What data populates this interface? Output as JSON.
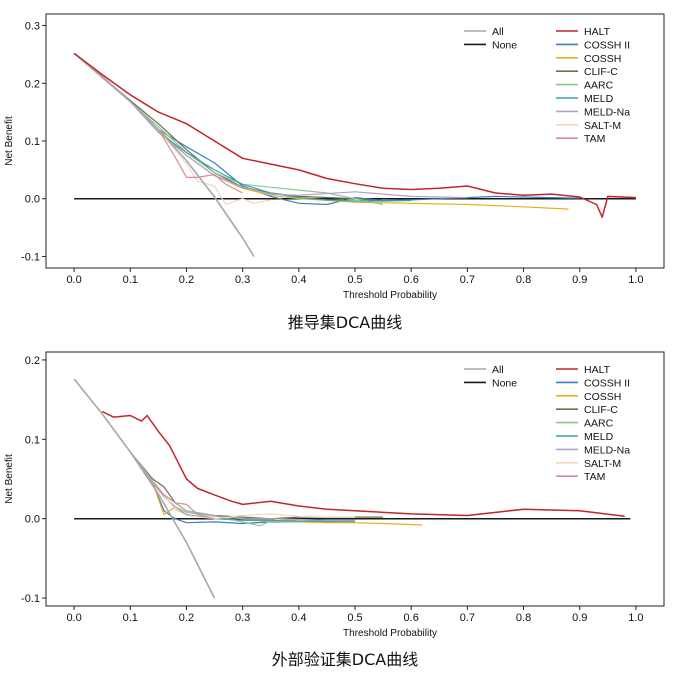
{
  "chart_data": [
    {
      "type": "line",
      "caption": "推导集DCA曲线",
      "xlabel": "Threshold Probability",
      "ylabel": "Net Benefit",
      "xlim": [
        -0.05,
        1.05
      ],
      "ylim": [
        -0.12,
        0.32
      ],
      "xticks": [
        0.0,
        0.1,
        0.2,
        0.3,
        0.4,
        0.5,
        0.6,
        0.7,
        0.8,
        0.9,
        1.0
      ],
      "xtick_labels": [
        "0.0",
        "0.1",
        "0.2",
        "0.3",
        "0.4",
        "0.5",
        "0.6",
        "0.7",
        "0.8",
        "0.9",
        "1.0"
      ],
      "yticks": [
        -0.1,
        0.0,
        0.1,
        0.2,
        0.3
      ],
      "ytick_labels": [
        "-0.1",
        "0.0",
        "0.1",
        "0.2",
        "0.3"
      ],
      "legend_col1": [
        "All",
        "None"
      ],
      "legend_col2": [
        "HALT",
        "COSSH II",
        "COSSH",
        "CLIF-C",
        "AARC",
        "MELD",
        "MELD-Na",
        "SALT-M",
        "TAM"
      ],
      "series": [
        {
          "name": "All",
          "color": "#a8a8a8",
          "x": [
            0.0,
            0.05,
            0.1,
            0.15,
            0.2,
            0.25,
            0.3,
            0.32
          ],
          "y": [
            0.252,
            0.212,
            0.168,
            0.12,
            0.066,
            0.003,
            -0.068,
            -0.1
          ]
        },
        {
          "name": "None",
          "color": "#1a1a1a",
          "x": [
            0.0,
            1.0
          ],
          "y": [
            0.0,
            0.0
          ]
        },
        {
          "name": "HALT",
          "color": "#c0262c",
          "x": [
            0.0,
            0.05,
            0.1,
            0.15,
            0.2,
            0.25,
            0.3,
            0.35,
            0.4,
            0.45,
            0.5,
            0.55,
            0.6,
            0.65,
            0.7,
            0.75,
            0.8,
            0.85,
            0.9,
            0.93,
            0.94,
            0.95,
            1.0
          ],
          "y": [
            0.252,
            0.215,
            0.18,
            0.15,
            0.13,
            0.1,
            0.07,
            0.06,
            0.05,
            0.035,
            0.026,
            0.018,
            0.016,
            0.018,
            0.022,
            0.01,
            0.006,
            0.008,
            0.003,
            -0.01,
            -0.032,
            0.004,
            0.002
          ]
        },
        {
          "name": "COSSH II",
          "color": "#3d7fbf",
          "x": [
            0.0,
            0.1,
            0.15,
            0.2,
            0.25,
            0.3,
            0.35,
            0.4,
            0.45,
            0.5,
            0.55,
            0.6,
            0.65,
            0.7,
            0.75,
            0.8,
            0.85,
            0.9
          ],
          "y": [
            0.252,
            0.17,
            0.12,
            0.09,
            0.062,
            0.022,
            0.004,
            -0.008,
            -0.01,
            0.002,
            -0.003,
            -0.002,
            0.0,
            0.002,
            0.004,
            0.003,
            0.002,
            0.001
          ]
        },
        {
          "name": "COSSH",
          "color": "#e6b21c",
          "x": [
            0.0,
            0.1,
            0.15,
            0.2,
            0.25,
            0.3,
            0.35,
            0.4,
            0.5,
            0.6,
            0.7,
            0.8,
            0.88
          ],
          "y": [
            0.252,
            0.168,
            0.12,
            0.075,
            0.04,
            0.018,
            0.006,
            0.0,
            -0.006,
            -0.008,
            -0.01,
            -0.014,
            -0.018
          ]
        },
        {
          "name": "CLIF-C",
          "color": "#6e6e52",
          "x": [
            0.0,
            0.1,
            0.15,
            0.2,
            0.25,
            0.3,
            0.35,
            0.4,
            0.5,
            0.55
          ],
          "y": [
            0.252,
            0.17,
            0.13,
            0.085,
            0.045,
            0.02,
            0.01,
            0.004,
            0.0,
            -0.004
          ]
        },
        {
          "name": "AARC",
          "color": "#8cc896",
          "x": [
            0.0,
            0.1,
            0.15,
            0.2,
            0.25,
            0.3,
            0.35,
            0.4,
            0.45,
            0.5,
            0.55
          ],
          "y": [
            0.252,
            0.168,
            0.125,
            0.08,
            0.045,
            0.025,
            0.02,
            0.015,
            0.01,
            0.0,
            -0.01
          ]
        },
        {
          "name": "MELD",
          "color": "#35a8a8",
          "x": [
            0.0,
            0.1,
            0.15,
            0.2,
            0.25,
            0.3,
            0.35,
            0.4,
            0.45,
            0.5,
            0.55,
            0.6
          ],
          "y": [
            0.252,
            0.168,
            0.115,
            0.08,
            0.05,
            0.025,
            0.01,
            0.002,
            -0.002,
            -0.004,
            -0.004,
            -0.003
          ]
        },
        {
          "name": "MELD-Na",
          "color": "#b0a0cf",
          "x": [
            0.0,
            0.1,
            0.15,
            0.2,
            0.25,
            0.3,
            0.35,
            0.4,
            0.5,
            0.55,
            0.6,
            0.65,
            0.7
          ],
          "y": [
            0.252,
            0.168,
            0.115,
            0.075,
            0.04,
            0.02,
            0.008,
            0.006,
            0.012,
            0.008,
            0.004,
            0.003,
            0.002
          ]
        },
        {
          "name": "SALT-M",
          "color": "#f3d8bc",
          "x": [
            0.0,
            0.1,
            0.15,
            0.2,
            0.22,
            0.25,
            0.27,
            0.3,
            0.32,
            0.35
          ],
          "y": [
            0.252,
            0.168,
            0.12,
            0.06,
            0.03,
            0.022,
            -0.01,
            0.0,
            -0.008,
            -0.002
          ]
        },
        {
          "name": "TAM",
          "color": "#d98a9c",
          "x": [
            0.0,
            0.1,
            0.15,
            0.18,
            0.2,
            0.22,
            0.25,
            0.27,
            0.3
          ],
          "y": [
            0.252,
            0.168,
            0.12,
            0.072,
            0.037,
            0.037,
            0.042,
            0.025,
            0.01
          ]
        }
      ]
    },
    {
      "type": "line",
      "caption": "外部验证集DCA曲线",
      "xlabel": "Threshold Probability",
      "ylabel": "Net Benefit",
      "xlim": [
        -0.05,
        1.05
      ],
      "ylim": [
        -0.11,
        0.21
      ],
      "xticks": [
        0.0,
        0.1,
        0.2,
        0.3,
        0.4,
        0.5,
        0.6,
        0.7,
        0.8,
        0.9,
        1.0
      ],
      "xtick_labels": [
        "0.0",
        "0.1",
        "0.2",
        "0.3",
        "0.4",
        "0.5",
        "0.6",
        "0.7",
        "0.8",
        "0.9",
        "1.0"
      ],
      "yticks": [
        -0.1,
        0.0,
        0.1,
        0.2
      ],
      "ytick_labels": [
        "-0.1",
        "0.0",
        "0.1",
        "0.2"
      ],
      "legend_col1": [
        "All",
        "None"
      ],
      "legend_col2": [
        "HALT",
        "COSSH II",
        "COSSH",
        "CLIF-C",
        "AARC",
        "MELD",
        "MELD-Na",
        "SALT-M",
        "TAM"
      ],
      "series": [
        {
          "name": "All",
          "color": "#a8a8a8",
          "x": [
            0.0,
            0.05,
            0.1,
            0.15,
            0.2,
            0.25
          ],
          "y": [
            0.176,
            0.132,
            0.084,
            0.031,
            -0.03,
            -0.1
          ]
        },
        {
          "name": "None",
          "color": "#1a1a1a",
          "x": [
            0.0,
            0.99
          ],
          "y": [
            0.0,
            0.0
          ]
        },
        {
          "name": "HALT",
          "color": "#c0262c",
          "x": [
            0.05,
            0.07,
            0.1,
            0.12,
            0.13,
            0.15,
            0.17,
            0.2,
            0.22,
            0.25,
            0.28,
            0.3,
            0.35,
            0.4,
            0.45,
            0.5,
            0.6,
            0.7,
            0.8,
            0.9,
            0.98
          ],
          "y": [
            0.135,
            0.128,
            0.13,
            0.123,
            0.13,
            0.11,
            0.092,
            0.05,
            0.038,
            0.03,
            0.022,
            0.018,
            0.022,
            0.016,
            0.012,
            0.01,
            0.006,
            0.004,
            0.012,
            0.01,
            0.003
          ]
        },
        {
          "name": "COSSH II",
          "color": "#3d7fbf",
          "x": [
            0.1,
            0.14,
            0.16,
            0.18,
            0.2,
            0.25,
            0.3,
            0.35,
            0.4,
            0.45,
            0.5
          ],
          "y": [
            0.084,
            0.045,
            0.01,
            0.0,
            -0.005,
            -0.004,
            -0.006,
            -0.004,
            -0.004,
            -0.004,
            -0.005
          ]
        },
        {
          "name": "COSSH",
          "color": "#e6b21c",
          "x": [
            0.1,
            0.14,
            0.16,
            0.18,
            0.2,
            0.25,
            0.3,
            0.35,
            0.4,
            0.45,
            0.5,
            0.55,
            0.62
          ],
          "y": [
            0.084,
            0.045,
            0.005,
            0.015,
            0.005,
            0.0,
            -0.002,
            -0.003,
            -0.004,
            -0.005,
            -0.005,
            -0.006,
            -0.008
          ]
        },
        {
          "name": "CLIF-C",
          "color": "#6e6e52",
          "x": [
            0.1,
            0.14,
            0.16,
            0.18,
            0.2,
            0.25,
            0.3,
            0.35,
            0.4,
            0.45,
            0.5,
            0.55
          ],
          "y": [
            0.084,
            0.05,
            0.04,
            0.02,
            0.01,
            0.004,
            0.002,
            0.0,
            0.002,
            0.002,
            0.002,
            0.002
          ]
        },
        {
          "name": "AARC",
          "color": "#8cc896",
          "x": [
            0.1,
            0.14,
            0.16,
            0.18,
            0.2,
            0.25,
            0.3,
            0.33,
            0.36,
            0.4,
            0.45,
            0.5
          ],
          "y": [
            0.084,
            0.048,
            0.03,
            0.02,
            0.01,
            0.004,
            -0.004,
            -0.009,
            0.0,
            -0.003,
            -0.003,
            -0.004
          ]
        },
        {
          "name": "MELD",
          "color": "#35a8a8",
          "x": [
            0.1,
            0.14,
            0.16,
            0.18,
            0.2,
            0.25,
            0.3,
            0.35,
            0.4,
            0.45,
            0.5
          ],
          "y": [
            0.084,
            0.045,
            0.03,
            0.012,
            0.005,
            0.0,
            -0.002,
            -0.002,
            -0.003,
            -0.003,
            -0.003
          ]
        },
        {
          "name": "MELD-Na",
          "color": "#b0a0cf",
          "x": [
            0.1,
            0.14,
            0.16,
            0.18,
            0.2,
            0.25,
            0.3,
            0.35,
            0.4,
            0.45,
            0.5
          ],
          "y": [
            0.084,
            0.045,
            0.028,
            0.015,
            0.008,
            0.003,
            0.0,
            0.0,
            -0.001,
            -0.002,
            -0.002
          ]
        },
        {
          "name": "SALT-M",
          "color": "#f3d8bc",
          "x": [
            0.1,
            0.14,
            0.16,
            0.18,
            0.2,
            0.25,
            0.3,
            0.35,
            0.4,
            0.45,
            0.5
          ],
          "y": [
            0.084,
            0.045,
            0.03,
            0.012,
            0.004,
            0.0,
            0.004,
            0.006,
            0.003,
            0.002,
            0.002
          ]
        },
        {
          "name": "TAM",
          "color": "#d98a9c",
          "x": [
            0.1,
            0.14,
            0.16,
            0.18,
            0.2,
            0.22,
            0.25
          ],
          "y": [
            0.084,
            0.045,
            0.03,
            0.02,
            0.018,
            0.005,
            0.0
          ]
        }
      ]
    }
  ]
}
